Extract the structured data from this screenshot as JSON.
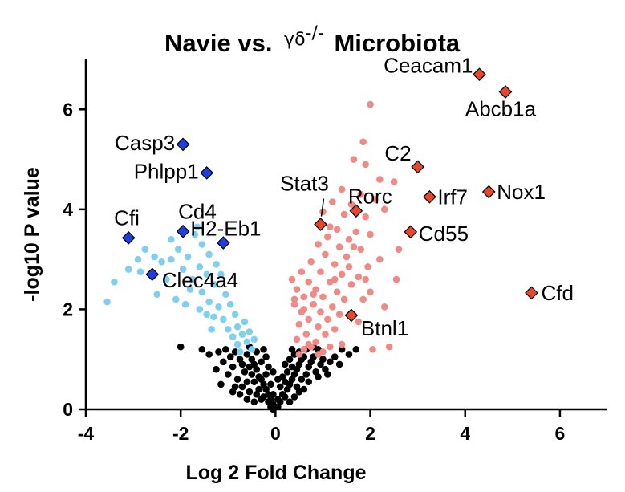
{
  "chart_data": {
    "type": "scatter",
    "title": "Navie vs. γδ-/- Microbiota",
    "title_prefix": "Navie vs. ",
    "title_symbol": "γδ",
    "title_superscript": "-/-",
    "title_suffix": " Microbiota",
    "xlabel": "Log 2 Fold Change",
    "ylabel": "-log10 P value",
    "xlim": [
      -4,
      7
    ],
    "ylim": [
      0,
      7
    ],
    "x_ticks": [
      -4,
      -2,
      0,
      2,
      4,
      6
    ],
    "y_ticks": [
      0,
      2,
      4,
      6
    ],
    "colors": {
      "not_significant": "#000000",
      "down": "#7fd0f0",
      "up": "#f08a86",
      "down_highlight": "#1f3ee0",
      "up_highlight": "#e8452c"
    },
    "highlighted_up": [
      {
        "label": "Ceacam1",
        "x": 4.3,
        "y": 6.7
      },
      {
        "label": "Abcb1a",
        "x": 4.85,
        "y": 6.35
      },
      {
        "label": "C2",
        "x": 3.0,
        "y": 4.85
      },
      {
        "label": "Irf7",
        "x": 3.25,
        "y": 4.25
      },
      {
        "label": "Nox1",
        "x": 4.5,
        "y": 4.35
      },
      {
        "label": "Stat3",
        "x": 0.95,
        "y": 3.7
      },
      {
        "label": "Rorc",
        "x": 1.7,
        "y": 3.97
      },
      {
        "label": "Cd55",
        "x": 2.85,
        "y": 3.55
      },
      {
        "label": "Cfd",
        "x": 5.4,
        "y": 2.33
      },
      {
        "label": "Btnl1",
        "x": 1.6,
        "y": 1.88
      }
    ],
    "highlighted_down": [
      {
        "label": "Casp3",
        "x": -1.95,
        "y": 5.3
      },
      {
        "label": "Phlpp1",
        "x": -1.45,
        "y": 4.73
      },
      {
        "label": "Cfi",
        "x": -3.1,
        "y": 3.43
      },
      {
        "label": "Cd4",
        "x": -1.95,
        "y": 3.56
      },
      {
        "label": "H2-Eb1",
        "x": -1.1,
        "y": 3.33
      },
      {
        "label": "Clec4a4",
        "x": -2.6,
        "y": 2.7
      }
    ],
    "up_points": [
      [
        2.0,
        6.1
      ],
      [
        1.85,
        5.35
      ],
      [
        1.65,
        5.0
      ],
      [
        1.9,
        4.9
      ],
      [
        2.2,
        4.6
      ],
      [
        2.5,
        4.55
      ],
      [
        1.4,
        4.4
      ],
      [
        1.8,
        4.3
      ],
      [
        2.1,
        4.2
      ],
      [
        1.2,
        4.15
      ],
      [
        1.6,
        4.1
      ],
      [
        2.3,
        4.0
      ],
      [
        1.0,
        3.95
      ],
      [
        1.45,
        3.9
      ],
      [
        1.9,
        3.85
      ],
      [
        1.3,
        3.6
      ],
      [
        1.7,
        3.55
      ],
      [
        2.0,
        3.5
      ],
      [
        1.1,
        3.45
      ],
      [
        1.55,
        3.4
      ],
      [
        0.9,
        3.3
      ],
      [
        1.35,
        3.25
      ],
      [
        1.8,
        3.2
      ],
      [
        2.6,
        3.2
      ],
      [
        1.05,
        3.1
      ],
      [
        1.5,
        3.05
      ],
      [
        2.2,
        3.0
      ],
      [
        0.75,
        2.95
      ],
      [
        1.25,
        2.9
      ],
      [
        1.95,
        2.85
      ],
      [
        0.95,
        2.75
      ],
      [
        1.4,
        2.7
      ],
      [
        1.75,
        2.65
      ],
      [
        2.55,
        2.6
      ],
      [
        0.7,
        2.55
      ],
      [
        1.15,
        2.55
      ],
      [
        1.6,
        2.5
      ],
      [
        0.45,
        2.4
      ],
      [
        0.85,
        2.4
      ],
      [
        1.3,
        2.35
      ],
      [
        2.0,
        2.35
      ],
      [
        0.6,
        2.25
      ],
      [
        1.0,
        2.25
      ],
      [
        1.45,
        2.2
      ],
      [
        1.85,
        2.2
      ],
      [
        0.4,
        2.1
      ],
      [
        0.8,
        2.1
      ],
      [
        1.2,
        2.05
      ],
      [
        2.3,
        2.05
      ],
      [
        0.55,
        1.95
      ],
      [
        0.95,
        1.95
      ],
      [
        1.35,
        1.9
      ],
      [
        0.7,
        1.8
      ],
      [
        1.1,
        1.8
      ],
      [
        1.75,
        1.75
      ],
      [
        0.5,
        1.7
      ],
      [
        0.9,
        1.65
      ],
      [
        1.25,
        1.6
      ],
      [
        0.65,
        1.5
      ],
      [
        1.05,
        1.5
      ],
      [
        0.45,
        1.4
      ],
      [
        0.85,
        1.35
      ],
      [
        1.4,
        1.3
      ],
      [
        0.75,
        1.25
      ],
      [
        1.15,
        1.25
      ],
      [
        0.6,
        1.2
      ],
      [
        1.0,
        1.15
      ],
      [
        2.05,
        1.2
      ],
      [
        0.5,
        1.1
      ],
      [
        0.9,
        1.1
      ],
      [
        0.35,
        2.6
      ],
      [
        0.55,
        2.75
      ],
      [
        0.6,
        2.0
      ],
      [
        1.55,
        2.85
      ],
      [
        1.65,
        3.25
      ],
      [
        2.4,
        1.25
      ],
      [
        1.15,
        3.65
      ],
      [
        0.8,
        2.3
      ],
      [
        0.4,
        2.2
      ],
      [
        1.9,
        2.6
      ],
      [
        1.25,
        2.6
      ],
      [
        0.7,
        1.3
      ]
    ],
    "down_points": [
      [
        -3.55,
        2.15
      ],
      [
        -3.4,
        2.55
      ],
      [
        -3.1,
        2.8
      ],
      [
        -2.9,
        3.0
      ],
      [
        -2.75,
        3.2
      ],
      [
        -2.55,
        3.05
      ],
      [
        -2.4,
        2.95
      ],
      [
        -2.85,
        2.75
      ],
      [
        -2.3,
        2.6
      ],
      [
        -2.05,
        3.2
      ],
      [
        -1.85,
        3.05
      ],
      [
        -2.2,
        3.4
      ],
      [
        -1.7,
        3.5
      ],
      [
        -1.55,
        3.3
      ],
      [
        -1.95,
        2.8
      ],
      [
        -1.75,
        2.6
      ],
      [
        -1.6,
        2.85
      ],
      [
        -1.4,
        3.1
      ],
      [
        -1.25,
        2.9
      ],
      [
        -1.45,
        2.7
      ],
      [
        -1.8,
        2.4
      ],
      [
        -1.55,
        2.35
      ],
      [
        -1.3,
        2.5
      ],
      [
        -1.15,
        2.7
      ],
      [
        -1.05,
        2.3
      ],
      [
        -1.4,
        2.15
      ],
      [
        -1.2,
        2.05
      ],
      [
        -0.95,
        2.1
      ],
      [
        -1.3,
        1.85
      ],
      [
        -1.1,
        1.8
      ],
      [
        -0.85,
        1.9
      ],
      [
        -1.0,
        1.6
      ],
      [
        -0.8,
        1.65
      ],
      [
        -0.65,
        1.75
      ],
      [
        -0.9,
        1.45
      ],
      [
        -0.7,
        1.5
      ],
      [
        -0.55,
        1.55
      ],
      [
        -0.8,
        1.3
      ],
      [
        -0.6,
        1.35
      ],
      [
        -0.45,
        1.4
      ],
      [
        -1.6,
        2.0
      ],
      [
        -2.5,
        2.3
      ],
      [
        -2.1,
        2.2
      ],
      [
        -1.35,
        1.6
      ],
      [
        -0.75,
        1.15
      ],
      [
        -0.5,
        1.2
      ],
      [
        -1.65,
        3.65
      ],
      [
        -1.45,
        1.9
      ],
      [
        -2.2,
        3.0
      ],
      [
        -1.9,
        2.1
      ]
    ],
    "ns_points": [
      [
        -2.0,
        1.25
      ],
      [
        -1.55,
        1.2
      ],
      [
        -1.4,
        1.1
      ],
      [
        -1.2,
        1.15
      ],
      [
        -1.05,
        1.2
      ],
      [
        -0.95,
        1.05
      ],
      [
        -1.1,
        0.95
      ],
      [
        -0.85,
        1.15
      ],
      [
        -0.75,
        1.0
      ],
      [
        -0.9,
        0.85
      ],
      [
        -0.7,
        0.9
      ],
      [
        -0.6,
        1.1
      ],
      [
        -0.5,
        1.0
      ],
      [
        -0.65,
        0.75
      ],
      [
        -0.55,
        0.85
      ],
      [
        -0.45,
        0.9
      ],
      [
        -0.5,
        0.7
      ],
      [
        -0.4,
        0.8
      ],
      [
        -0.35,
        0.65
      ],
      [
        -0.45,
        0.55
      ],
      [
        -0.3,
        0.6
      ],
      [
        -0.25,
        0.5
      ],
      [
        -0.35,
        0.4
      ],
      [
        -0.2,
        0.4
      ],
      [
        -0.15,
        0.3
      ],
      [
        -0.25,
        0.25
      ],
      [
        -0.1,
        0.2
      ],
      [
        -0.05,
        0.1
      ],
      [
        -0.15,
        0.15
      ],
      [
        -0.8,
        0.6
      ],
      [
        -0.6,
        0.55
      ],
      [
        -0.7,
        0.45
      ],
      [
        -0.55,
        0.35
      ],
      [
        -0.4,
        0.3
      ],
      [
        -0.3,
        0.2
      ],
      [
        -1.0,
        0.7
      ],
      [
        -0.85,
        0.45
      ],
      [
        -0.2,
        0.7
      ],
      [
        -0.1,
        0.5
      ],
      [
        -0.3,
        0.95
      ],
      [
        -0.15,
        0.85
      ],
      [
        -0.4,
        1.15
      ],
      [
        -0.25,
        1.2
      ],
      [
        -0.55,
        1.25
      ],
      [
        -0.1,
        0.05
      ],
      [
        -0.05,
        0.3
      ],
      [
        0.05,
        0.05
      ],
      [
        0.1,
        0.15
      ],
      [
        0.15,
        0.3
      ],
      [
        0.2,
        0.25
      ],
      [
        0.25,
        0.4
      ],
      [
        0.3,
        0.5
      ],
      [
        0.35,
        0.6
      ],
      [
        0.4,
        0.7
      ],
      [
        0.45,
        0.8
      ],
      [
        0.5,
        0.9
      ],
      [
        0.55,
        1.0
      ],
      [
        0.6,
        1.05
      ],
      [
        0.35,
        0.85
      ],
      [
        0.25,
        0.75
      ],
      [
        0.2,
        0.55
      ],
      [
        0.45,
        0.45
      ],
      [
        0.55,
        0.6
      ],
      [
        0.65,
        0.7
      ],
      [
        0.7,
        0.85
      ],
      [
        0.75,
        0.95
      ],
      [
        0.8,
        1.05
      ],
      [
        0.85,
        0.75
      ],
      [
        0.95,
        0.9
      ],
      [
        1.0,
        1.0
      ],
      [
        1.05,
        0.8
      ],
      [
        1.15,
        0.95
      ],
      [
        1.25,
        1.05
      ],
      [
        1.35,
        0.9
      ],
      [
        1.55,
        1.1
      ],
      [
        1.7,
        1.2
      ],
      [
        0.4,
        1.1
      ],
      [
        0.3,
        1.0
      ],
      [
        0.15,
        0.65
      ],
      [
        0.1,
        0.45
      ],
      [
        0.5,
        0.35
      ],
      [
        0.6,
        0.4
      ],
      [
        0.7,
        0.55
      ],
      [
        0.9,
        0.65
      ],
      [
        1.1,
        0.7
      ],
      [
        0.05,
        0.2
      ],
      [
        0.0,
        0.05
      ],
      [
        -0.05,
        0.0
      ],
      [
        0.2,
        0.9
      ],
      [
        0.35,
        1.2
      ],
      [
        0.5,
        1.15
      ],
      [
        0.65,
        1.2
      ],
      [
        0.8,
        1.25
      ],
      [
        0.3,
        0.15
      ],
      [
        0.4,
        0.25
      ],
      [
        -0.6,
        0.2
      ],
      [
        -0.45,
        0.15
      ],
      [
        -0.75,
        0.3
      ],
      [
        -0.9,
        0.35
      ],
      [
        -1.15,
        0.5
      ],
      [
        -1.25,
        0.8
      ],
      [
        0.9,
        1.2
      ],
      [
        1.4,
        1.2
      ],
      [
        -0.2,
        1.05
      ],
      [
        0.05,
        0.6
      ],
      [
        -0.05,
        0.75
      ]
    ]
  }
}
